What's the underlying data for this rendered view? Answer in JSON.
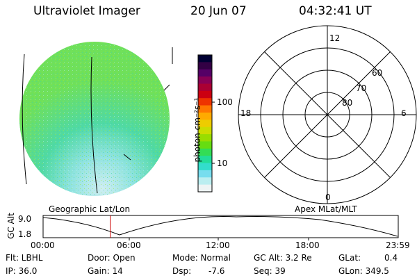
{
  "header": {
    "title": "Ultraviolet Imager",
    "date": "20 Jun 07",
    "time": "04:32:41 UT"
  },
  "colorbar": {
    "unit_label": "photon cm⁻²s⁻¹",
    "ticks": [
      "100",
      "10"
    ],
    "colors": [
      "#000033",
      "#330044",
      "#550066",
      "#880055",
      "#aa0033",
      "#cc0011",
      "#ee3300",
      "#ff7700",
      "#ffaa00",
      "#eecc00",
      "#ccdd00",
      "#99dd00",
      "#66dd11",
      "#33dd55",
      "#22dd99",
      "#33ddcc",
      "#77ddee",
      "#bbeef0",
      "#eef4f4"
    ]
  },
  "polar": {
    "mlt_labels": {
      "top": "12",
      "left": "18",
      "right": "6",
      "bottom": "0"
    },
    "lat_labels": [
      "60",
      "70",
      "80"
    ]
  },
  "timeline": {
    "left_label": "Geographic Lat/Lon",
    "right_label": "Apex MLat/MLT",
    "axis_title": "GC Alt",
    "y_ticks": [
      "9.0",
      "1.8"
    ],
    "x_ticks": [
      "00:00",
      "06:00",
      "12:00",
      "18:00",
      "23:59"
    ],
    "marker_time_fraction": 0.189
  },
  "info": {
    "flt": "Flt: LBHL",
    "door": "Door: Open",
    "mode": "Mode: Normal",
    "gc_alt": "GC Alt: 3.2 Re",
    "glat": "GLat:",
    "glat_val": "0.4",
    "ip": "IP: 36.0",
    "gain": "Gain: 14",
    "dsp": "Dsp:",
    "dsp_val": "-7.6",
    "seq": "Seq: 39",
    "glon": "GLon: 349.5"
  }
}
